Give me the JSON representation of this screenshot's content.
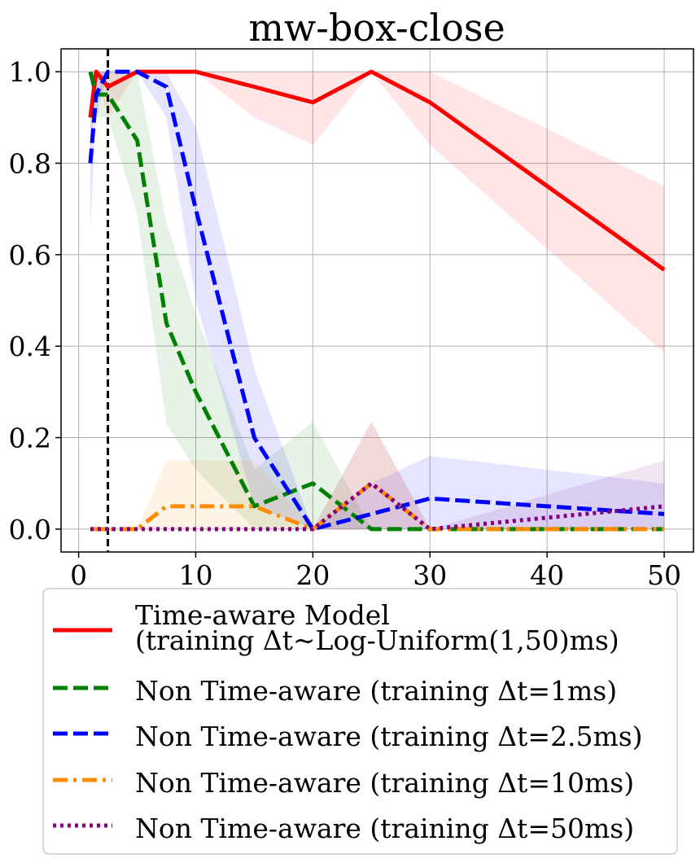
{
  "chart_data": {
    "type": "line",
    "title": "mw-box-close",
    "xlabel": "",
    "ylabel": "",
    "xlim": [
      -1.5,
      52.5
    ],
    "ylim": [
      -0.05,
      1.05
    ],
    "xticks": [
      0,
      10,
      20,
      30,
      40,
      50
    ],
    "xtick_labels": [
      "0",
      "10",
      "20",
      "30",
      "40",
      "50"
    ],
    "yticks": [
      0.0,
      0.2,
      0.4,
      0.6,
      0.8,
      1.0
    ],
    "ytick_labels": [
      "0.0",
      "0.2",
      "0.4",
      "0.6",
      "0.8",
      "1.0"
    ],
    "grid": true,
    "legend_position": "below plot",
    "vertical_reference_line": {
      "x": 2.5,
      "style": "black dashed"
    },
    "series": [
      {
        "name": "Time-aware Model\n(training Δt~Log-Uniform(1,50)ms)",
        "color": "#ff0000",
        "style": "solid",
        "x": [
          1,
          1.5,
          2.5,
          5,
          7.5,
          10,
          15,
          20,
          25,
          30,
          50
        ],
        "y": [
          0.9,
          1.0,
          0.967,
          1.0,
          1.0,
          1.0,
          0.967,
          0.933,
          1.0,
          0.933,
          0.567
        ],
        "lower": [
          0.8,
          1.0,
          0.9,
          1.0,
          1.0,
          1.0,
          0.9,
          0.84,
          1.0,
          0.84,
          0.385
        ],
        "upper": [
          1.0,
          1.0,
          1.0,
          1.0,
          1.0,
          1.0,
          1.0,
          1.0,
          1.0,
          1.0,
          0.75
        ]
      },
      {
        "name": "Non Time-aware (training Δt=1ms)",
        "color": "#008000",
        "style": "dashed",
        "x": [
          1,
          1.5,
          2.5,
          5,
          7.5,
          10,
          15,
          20,
          25,
          30,
          50
        ],
        "y": [
          1.0,
          0.95,
          0.95,
          0.85,
          0.45,
          0.3,
          0.05,
          0.1,
          0.0,
          0.0,
          0.0
        ],
        "lower": [
          1.0,
          0.9,
          0.9,
          0.69,
          0.23,
          0.13,
          0.0,
          0.0,
          0.0,
          0.0,
          0.0
        ],
        "upper": [
          1.0,
          1.0,
          1.0,
          1.0,
          0.67,
          0.47,
          0.13,
          0.235,
          0.0,
          0.0,
          0.0
        ]
      },
      {
        "name": "Non Time-aware (training Δt=2.5ms)",
        "color": "#0000ff",
        "style": "dashed",
        "x": [
          1,
          1.5,
          2.5,
          5,
          7.5,
          10,
          15,
          20,
          25,
          30,
          50
        ],
        "y": [
          0.8,
          0.95,
          1.0,
          1.0,
          0.967,
          0.7,
          0.2,
          0.0,
          0.033,
          0.067,
          0.033
        ],
        "lower": [
          0.655,
          0.9,
          1.0,
          1.0,
          0.9,
          0.5,
          0.05,
          0.0,
          0.0,
          0.0,
          0.0
        ],
        "upper": [
          0.945,
          1.0,
          1.0,
          1.0,
          1.0,
          0.88,
          0.35,
          0.0,
          0.1,
          0.16,
          0.1
        ]
      },
      {
        "name": "Non Time-aware (training Δt=10ms)",
        "color": "#ff8c00",
        "style": "dashdot",
        "x": [
          1,
          1.5,
          2.5,
          5,
          7.5,
          10,
          15,
          20,
          25,
          30,
          50
        ],
        "y": [
          0.0,
          0.0,
          0.0,
          0.0,
          0.05,
          0.05,
          0.05,
          0.0,
          0.1,
          0.0,
          0.0
        ],
        "lower": [
          0.0,
          0.0,
          0.0,
          0.0,
          0.0,
          0.0,
          0.0,
          0.0,
          0.0,
          0.0,
          0.0
        ],
        "upper": [
          0.0,
          0.0,
          0.0,
          0.0,
          0.15,
          0.15,
          0.15,
          0.0,
          0.235,
          0.0,
          0.0
        ]
      },
      {
        "name": "Non Time-aware (training Δt=50ms)",
        "color": "#800080",
        "style": "dotted",
        "x": [
          1,
          1.5,
          2.5,
          5,
          7.5,
          10,
          15,
          20,
          25,
          30,
          50
        ],
        "y": [
          0.0,
          0.0,
          0.0,
          0.0,
          0.0,
          0.0,
          0.0,
          0.0,
          0.1,
          0.0,
          0.05
        ],
        "lower": [
          0.0,
          0.0,
          0.0,
          0.0,
          0.0,
          0.0,
          0.0,
          0.0,
          0.0,
          0.0,
          0.0
        ],
        "upper": [
          0.0,
          0.0,
          0.0,
          0.0,
          0.0,
          0.0,
          0.0,
          0.0,
          0.235,
          0.0,
          0.15
        ]
      }
    ]
  },
  "legend": {
    "items": [
      {
        "lines": [
          "Time-aware Model",
          "(training Δt~Log-Uniform(1,50)ms)"
        ]
      },
      {
        "lines": [
          "Non Time-aware (training Δt=1ms)"
        ]
      },
      {
        "lines": [
          "Non Time-aware (training Δt=2.5ms)"
        ]
      },
      {
        "lines": [
          "Non Time-aware (training Δt=10ms)"
        ]
      },
      {
        "lines": [
          "Non Time-aware (training Δt=50ms)"
        ]
      }
    ]
  }
}
